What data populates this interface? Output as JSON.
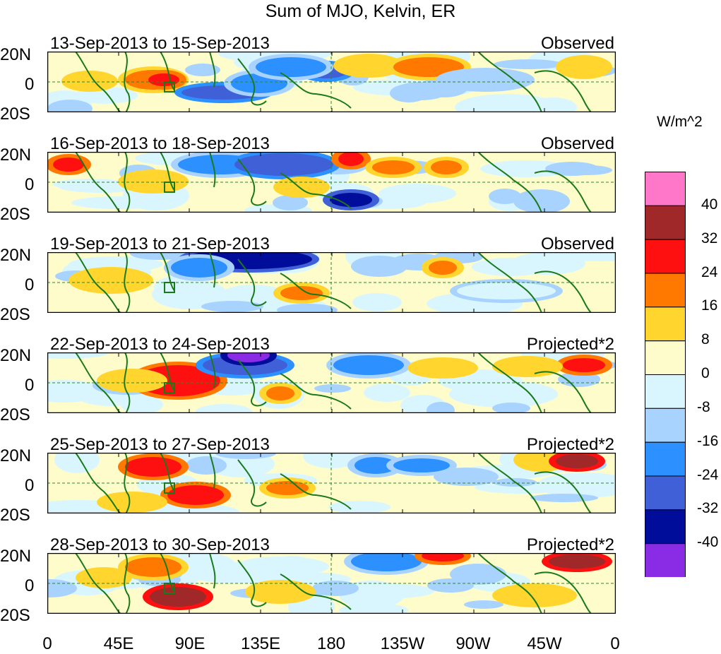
{
  "title": "Sum of MJO, Kelvin, ER",
  "panels": [
    {
      "period": "13-Sep-2013 to 15-Sep-2013",
      "tag": "Observed"
    },
    {
      "period": "16-Sep-2013 to 18-Sep-2013",
      "tag": "Observed"
    },
    {
      "period": "19-Sep-2013 to 21-Sep-2013",
      "tag": "Observed"
    },
    {
      "period": "22-Sep-2013 to 24-Sep-2013",
      "tag": "Projected*2"
    },
    {
      "period": "25-Sep-2013 to 27-Sep-2013",
      "tag": "Projected*2"
    },
    {
      "period": "28-Sep-2013 to 30-Sep-2013",
      "tag": "Projected*2"
    }
  ],
  "lat_labels": {
    "north": "20N",
    "equator": "0",
    "south": "20S"
  },
  "lon_labels": [
    "0",
    "45E",
    "90E",
    "135E",
    "180",
    "135W",
    "90W",
    "45W",
    "0"
  ],
  "colorbar": {
    "unit": "W/m^2",
    "labels": [
      "40",
      "32",
      "24",
      "16",
      "8",
      "0",
      "-8",
      "-16",
      "-24",
      "-32",
      "-40"
    ],
    "colors": [
      "#ff77c8",
      "#a02828",
      "#ff1010",
      "#ff7800",
      "#ffd52e",
      "#fffccc",
      "#d9f6ff",
      "#a9d3ff",
      "#2c90ff",
      "#4060d8",
      "#000c9a",
      "#8a2be6"
    ]
  },
  "colors": {
    "coast": "#1a7a1a",
    "equator": "#2a8a2a",
    "background": "#fffccc"
  }
}
